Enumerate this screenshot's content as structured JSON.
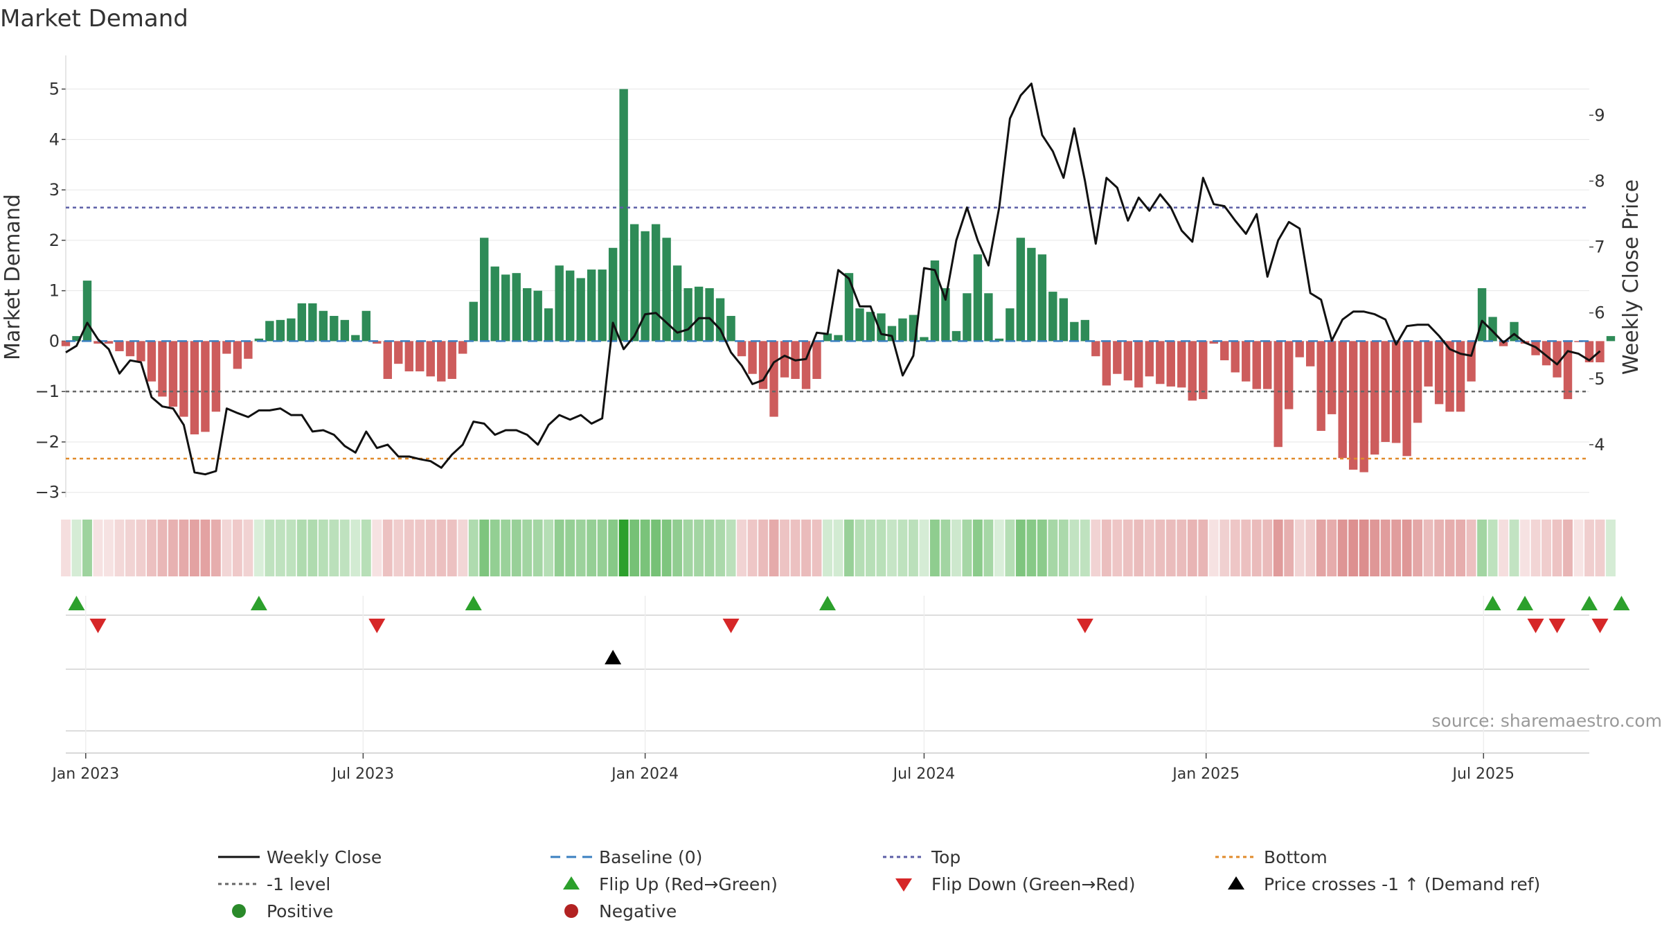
{
  "chart_data": {
    "type": "bar",
    "title": "Market Demand",
    "ylabel": "Market Demand",
    "y2label": "Weekly Close Price",
    "ylim": [
      -3.1,
      5.2
    ],
    "y2lim": [
      3.2,
      9.55
    ],
    "yticks": [
      -3,
      -2,
      -1,
      0,
      1,
      2,
      3,
      4,
      5
    ],
    "ytick_labels": [
      "−3",
      "−2",
      "−1",
      "0",
      "1",
      "2",
      "3",
      "4",
      "5"
    ],
    "y2ticks": [
      4,
      5,
      6,
      7,
      8,
      9
    ],
    "y2tick_labels": [
      "4",
      "5",
      "6",
      "7",
      "8",
      "9"
    ],
    "x_start": "2022-12-19",
    "x_end": "2025-09-08",
    "xticks": [
      {
        "date": "2023-01-01",
        "label": "Jan 2023"
      },
      {
        "date": "2023-07-01",
        "label": "Jul 2023"
      },
      {
        "date": "2024-01-01",
        "label": "Jan 2024"
      },
      {
        "date": "2024-07-01",
        "label": "Jul 2024"
      },
      {
        "date": "2025-01-01",
        "label": "Jan 2025"
      },
      {
        "date": "2025-07-01",
        "label": "Jul 2025"
      }
    ],
    "weeks_start": "2022-12-19",
    "demand": [
      -0.1,
      0.1,
      1.2,
      -0.05,
      -0.05,
      -0.2,
      -0.3,
      -0.4,
      -0.8,
      -1.1,
      -1.3,
      -1.5,
      -1.85,
      -1.8,
      -1.4,
      -0.25,
      -0.55,
      -0.35,
      0.05,
      0.4,
      0.42,
      0.45,
      0.75,
      0.75,
      0.6,
      0.5,
      0.42,
      0.12,
      0.6,
      -0.05,
      -0.75,
      -0.45,
      -0.6,
      -0.6,
      -0.7,
      -0.8,
      -0.75,
      -0.25,
      0.78,
      2.05,
      1.48,
      1.32,
      1.35,
      1.05,
      1.0,
      0.65,
      1.5,
      1.4,
      1.25,
      1.42,
      1.42,
      1.85,
      5.0,
      2.32,
      2.18,
      2.32,
      2.05,
      1.5,
      1.05,
      1.08,
      1.05,
      0.85,
      0.5,
      -0.3,
      -0.65,
      -0.95,
      -1.5,
      -0.72,
      -0.75,
      -0.95,
      -0.75,
      0.15,
      0.12,
      1.35,
      0.65,
      0.58,
      0.55,
      0.3,
      0.45,
      0.52,
      0.08,
      1.6,
      1.05,
      0.2,
      0.95,
      1.72,
      0.95,
      0.05,
      0.65,
      2.05,
      1.85,
      1.72,
      0.98,
      0.85,
      0.38,
      0.42,
      -0.3,
      -0.88,
      -0.65,
      -0.78,
      -0.92,
      -0.7,
      -0.85,
      -0.9,
      -0.92,
      -1.18,
      -1.15,
      -0.05,
      -0.38,
      -0.62,
      -0.8,
      -0.95,
      -0.95,
      -2.1,
      -1.35,
      -0.32,
      -0.5,
      -1.78,
      -1.45,
      -2.32,
      -2.55,
      -2.6,
      -2.25,
      -2.0,
      -2.02,
      -2.28,
      -1.62,
      -0.9,
      -1.25,
      -1.4,
      -1.4,
      -0.8,
      1.05,
      0.48,
      -0.1,
      0.38,
      -0.05,
      -0.28,
      -0.48,
      -0.72,
      -1.15,
      -0.02,
      -0.42,
      -0.42,
      0.1
    ],
    "close": [
      5.4,
      5.5,
      5.85,
      5.6,
      5.45,
      5.08,
      5.28,
      5.25,
      4.72,
      4.58,
      4.55,
      4.3,
      3.58,
      3.55,
      3.6,
      4.55,
      4.48,
      4.42,
      4.52,
      4.52,
      4.55,
      4.45,
      4.45,
      4.2,
      4.22,
      4.15,
      3.98,
      3.88,
      4.2,
      3.95,
      4.0,
      3.82,
      3.82,
      3.78,
      3.75,
      3.65,
      3.85,
      4.0,
      4.35,
      4.32,
      4.15,
      4.22,
      4.22,
      4.15,
      4.0,
      4.3,
      4.45,
      4.38,
      4.45,
      4.32,
      4.4,
      5.85,
      5.45,
      5.65,
      5.98,
      6.0,
      5.85,
      5.7,
      5.75,
      5.92,
      5.92,
      5.75,
      5.4,
      5.2,
      4.92,
      4.98,
      5.25,
      5.35,
      5.28,
      5.3,
      5.7,
      5.68,
      6.65,
      6.52,
      6.1,
      6.1,
      5.68,
      5.65,
      5.05,
      5.35,
      6.68,
      6.65,
      6.2,
      7.1,
      7.6,
      7.1,
      6.72,
      7.6,
      8.95,
      9.3,
      9.48,
      8.7,
      8.45,
      8.05,
      8.8,
      8.0,
      7.05,
      8.05,
      7.9,
      7.4,
      7.75,
      7.55,
      7.8,
      7.6,
      7.25,
      7.08,
      8.05,
      7.65,
      7.62,
      7.4,
      7.2,
      7.5,
      6.55,
      7.1,
      7.38,
      7.28,
      6.3,
      6.2,
      5.58,
      5.9,
      6.02,
      6.02,
      5.98,
      5.9,
      5.52,
      5.8,
      5.82,
      5.82,
      5.65,
      5.45,
      5.38,
      5.35,
      5.88,
      5.72,
      5.55,
      5.68,
      5.55,
      5.48,
      5.35,
      5.22,
      5.42,
      5.38,
      5.28,
      5.42
    ],
    "levels": [
      {
        "name": "Top",
        "value": 2.65,
        "color": "#5b5ea6"
      },
      {
        "name": "-1 level",
        "value": -1.0,
        "color": "#666666"
      },
      {
        "name": "Bottom",
        "value": -2.33,
        "color": "#e08a2a"
      }
    ],
    "flip_up_weeks": [
      1,
      18,
      38,
      71,
      133,
      136,
      142,
      145
    ],
    "flip_down_weeks": [
      3,
      29,
      62,
      95,
      137,
      139,
      143
    ],
    "price_cross_weeks": [
      51
    ],
    "legend_position": "bottom",
    "legend": [
      {
        "label": "Weekly Close",
        "marker": "line",
        "color": "#111111"
      },
      {
        "label": "Baseline (0)",
        "marker": "dash",
        "color": "#3a7fc0"
      },
      {
        "label": "Top",
        "marker": "dot",
        "color": "#5b5ea6"
      },
      {
        "label": "Bottom",
        "marker": "dot",
        "color": "#e08a2a"
      },
      {
        "label": "-1 level",
        "marker": "dot",
        "color": "#666666"
      },
      {
        "label": "Flip Up (Red→Green)",
        "marker": "triangle-up",
        "color": "#2ca02c"
      },
      {
        "label": "Flip Down (Green→Red)",
        "marker": "triangle-down",
        "color": "#d62728"
      },
      {
        "label": "Price crosses -1 ↑ (Demand ref)",
        "marker": "triangle-up",
        "color": "#000000"
      },
      {
        "label": "Positive",
        "marker": "circle",
        "color": "#2a8a2a"
      },
      {
        "label": "Negative",
        "marker": "circle",
        "color": "#b22222"
      }
    ],
    "source": "source: sharemaestro.com"
  },
  "colors": {
    "positive": "#2e8b57",
    "negative": "#cd5c5c",
    "text": "#333333",
    "grid": "#e6e6e6"
  }
}
